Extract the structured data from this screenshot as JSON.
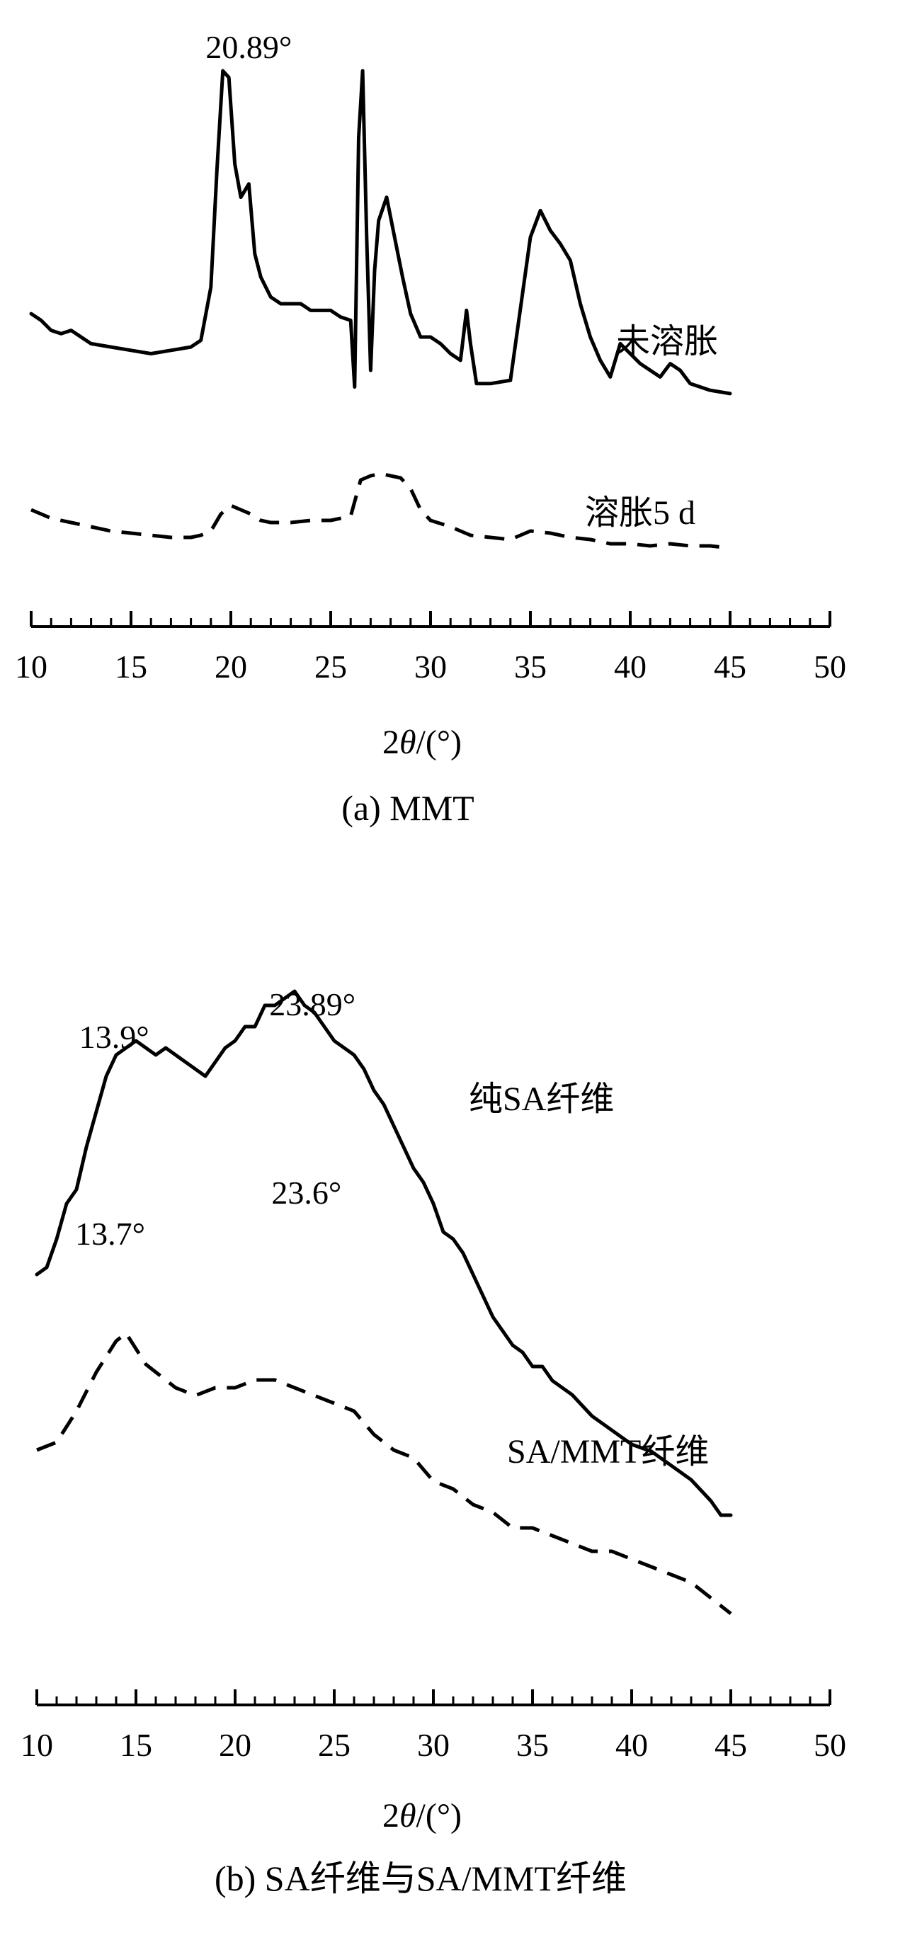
{
  "chart_data": [
    {
      "type": "line",
      "caption": "(a) MMT",
      "xlabel_prefix": "2",
      "xlabel_theta": "θ",
      "xlabel_suffix": "/(°)",
      "xlim": [
        10,
        50
      ],
      "xticks": [
        10,
        15,
        20,
        25,
        30,
        35,
        40,
        45,
        50
      ],
      "y_axis": "none (relative intensity, curves offset)",
      "grid": false,
      "annotations": [
        {
          "text": "20.89°",
          "x": 20.9
        }
      ],
      "series": [
        {
          "name": "未溶胀",
          "style": "solid",
          "x": [
            10,
            10.5,
            11,
            11.5,
            12,
            12.5,
            13,
            14,
            15,
            16,
            17,
            18,
            18.5,
            19,
            19.3,
            19.6,
            19.9,
            20.2,
            20.5,
            20.9,
            21.2,
            21.5,
            22,
            22.5,
            23,
            23.5,
            24,
            24.5,
            25,
            25.5,
            26,
            26.2,
            26.4,
            26.6,
            26.8,
            27,
            27.2,
            27.4,
            27.8,
            28.2,
            28.6,
            29,
            29.5,
            30,
            30.5,
            31,
            31.5,
            31.8,
            32,
            32.3,
            33,
            34,
            35,
            35.5,
            36,
            36.5,
            37,
            37.5,
            38,
            38.5,
            39,
            39.5,
            40,
            40.5,
            41,
            41.5,
            42,
            42.5,
            43,
            44,
            45
          ],
          "y": [
            0.27,
            0.25,
            0.22,
            0.21,
            0.22,
            0.2,
            0.18,
            0.17,
            0.16,
            0.15,
            0.16,
            0.17,
            0.19,
            0.35,
            0.7,
            1.0,
            0.98,
            0.72,
            0.62,
            0.66,
            0.45,
            0.38,
            0.32,
            0.3,
            0.3,
            0.3,
            0.28,
            0.28,
            0.28,
            0.26,
            0.25,
            0.05,
            0.8,
            1.0,
            0.5,
            0.1,
            0.4,
            0.55,
            0.62,
            0.5,
            0.38,
            0.27,
            0.2,
            0.2,
            0.18,
            0.15,
            0.13,
            0.28,
            0.18,
            0.06,
            0.06,
            0.07,
            0.5,
            0.58,
            0.52,
            0.48,
            0.43,
            0.3,
            0.2,
            0.13,
            0.08,
            0.18,
            0.15,
            0.12,
            0.1,
            0.08,
            0.12,
            0.1,
            0.06,
            0.04,
            0.03
          ]
        },
        {
          "name": "溶胀5 d",
          "style": "dashed",
          "x": [
            10,
            11,
            12,
            13,
            14,
            15,
            16,
            17,
            18,
            18.5,
            19,
            19.5,
            20,
            20.5,
            21,
            21.5,
            22,
            23,
            24,
            25,
            26,
            26.5,
            27,
            27.5,
            28,
            28.5,
            29,
            29.5,
            30,
            31,
            32,
            33,
            34,
            35,
            36,
            37,
            38,
            39,
            40,
            41,
            42,
            43,
            44,
            45
          ],
          "y": [
            0.2,
            0.16,
            0.14,
            0.12,
            0.1,
            0.09,
            0.08,
            0.07,
            0.07,
            0.08,
            0.1,
            0.18,
            0.22,
            0.2,
            0.18,
            0.15,
            0.14,
            0.14,
            0.15,
            0.15,
            0.17,
            0.34,
            0.36,
            0.37,
            0.36,
            0.35,
            0.3,
            0.2,
            0.15,
            0.12,
            0.08,
            0.07,
            0.06,
            0.1,
            0.09,
            0.07,
            0.06,
            0.04,
            0.04,
            0.03,
            0.04,
            0.03,
            0.03,
            0.02
          ]
        }
      ]
    },
    {
      "type": "line",
      "caption": "(b) SA纤维与SA/MMT纤维",
      "xlabel_prefix": "2",
      "xlabel_theta": "θ",
      "xlabel_suffix": "/(°)",
      "xlim": [
        10,
        50
      ],
      "xticks": [
        10,
        15,
        20,
        25,
        30,
        35,
        40,
        45,
        50
      ],
      "y_axis": "none (relative intensity, curves offset)",
      "grid": false,
      "annotations": [
        {
          "text": "13.9°",
          "x": 13.9,
          "series": 0
        },
        {
          "text": "23.89°",
          "x": 23.9,
          "series": 0
        },
        {
          "text": "13.7°",
          "x": 13.7,
          "series": 1
        },
        {
          "text": "23.6°",
          "x": 23.6,
          "series": 1
        }
      ],
      "series": [
        {
          "name": "纯SA纤维",
          "style": "solid",
          "x": [
            10,
            10.5,
            11,
            11.5,
            12,
            12.5,
            13,
            13.5,
            14,
            14.5,
            15,
            15.5,
            16,
            16.5,
            17,
            17.5,
            18,
            18.5,
            19,
            19.5,
            20,
            20.5,
            21,
            21.5,
            22,
            22.5,
            23,
            23.5,
            24,
            24.5,
            25,
            25.5,
            26,
            26.5,
            27,
            27.5,
            28,
            28.5,
            29,
            29.5,
            30,
            30.5,
            31,
            31.5,
            32,
            32.5,
            33,
            33.5,
            34,
            34.5,
            35,
            35.5,
            36,
            37,
            38,
            39,
            40,
            41,
            42,
            43,
            44,
            44.5,
            45
          ],
          "y": [
            0.55,
            0.56,
            0.6,
            0.65,
            0.67,
            0.73,
            0.78,
            0.83,
            0.86,
            0.87,
            0.88,
            0.87,
            0.86,
            0.87,
            0.86,
            0.85,
            0.84,
            0.83,
            0.85,
            0.87,
            0.88,
            0.9,
            0.9,
            0.93,
            0.93,
            0.94,
            0.95,
            0.93,
            0.92,
            0.9,
            0.88,
            0.87,
            0.86,
            0.84,
            0.81,
            0.79,
            0.76,
            0.73,
            0.7,
            0.68,
            0.65,
            0.61,
            0.6,
            0.58,
            0.55,
            0.52,
            0.49,
            0.47,
            0.45,
            0.44,
            0.42,
            0.42,
            0.4,
            0.38,
            0.35,
            0.33,
            0.31,
            0.3,
            0.28,
            0.26,
            0.23,
            0.21,
            0.21
          ]
        },
        {
          "name": "SA/MMT纤维",
          "style": "dashed",
          "x": [
            10,
            11,
            12,
            13,
            14,
            14.5,
            15,
            15.5,
            16,
            17,
            18,
            19,
            20,
            21,
            22,
            23,
            24,
            25,
            26,
            27,
            28,
            29,
            30,
            31,
            32,
            33,
            34,
            35,
            36,
            37,
            38,
            39,
            40,
            41,
            42,
            43,
            44,
            45
          ],
          "y": [
            0.37,
            0.38,
            0.42,
            0.47,
            0.51,
            0.52,
            0.5,
            0.48,
            0.47,
            0.45,
            0.44,
            0.45,
            0.45,
            0.46,
            0.46,
            0.45,
            0.44,
            0.43,
            0.42,
            0.39,
            0.37,
            0.36,
            0.33,
            0.32,
            0.3,
            0.29,
            0.27,
            0.27,
            0.26,
            0.25,
            0.24,
            0.24,
            0.23,
            0.22,
            0.21,
            0.2,
            0.18,
            0.16
          ]
        }
      ]
    }
  ]
}
